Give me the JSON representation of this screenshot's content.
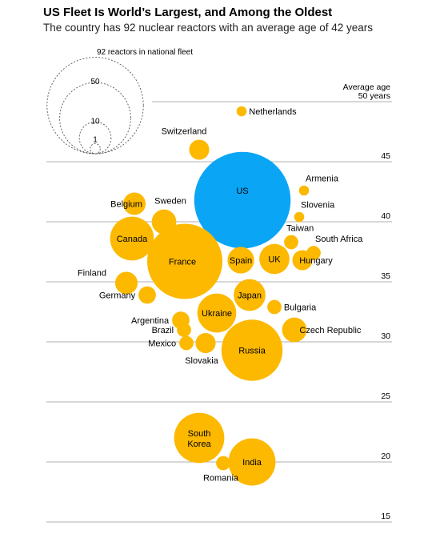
{
  "header": {
    "title": "US Fleet Is World’s Largest, and Among the Oldest",
    "subtitle": "The country has 92 nuclear reactors with an average age of 42 years"
  },
  "colors": {
    "us": "#0aa5f5",
    "other": "#fcb900",
    "grid": "#b0b0b0",
    "text": "#000000",
    "size_legend": "#555555"
  },
  "chart_data": {
    "type": "bubble",
    "title": "US Fleet Is World’s Largest, and Among the Oldest",
    "subtitle": "The country has 92 nuclear reactors with an average age of 42 years",
    "ylabel": "Average age",
    "y_axis_label_line1": "Average age",
    "y_axis_label_line2": "50 years",
    "ylim": [
      15,
      50
    ],
    "yticks": [
      50,
      45,
      40,
      35,
      30,
      25,
      20,
      15
    ],
    "ytick_labels": [
      "50 years",
      "45",
      "40",
      "35",
      "30",
      "25",
      "20",
      "15"
    ],
    "size_legend": {
      "title": "92 reactors in national fleet",
      "values": [
        92,
        50,
        10,
        1
      ],
      "labels": [
        "92",
        "50",
        "10",
        "1"
      ]
    },
    "countries": [
      {
        "name": "Netherlands",
        "avg_age": 49.2,
        "reactors": 1
      },
      {
        "name": "Switzerland",
        "avg_age": 46.0,
        "reactors": 4
      },
      {
        "name": "US",
        "avg_age": 41.8,
        "reactors": 92
      },
      {
        "name": "Armenia",
        "avg_age": 42.6,
        "reactors": 1
      },
      {
        "name": "Slovenia",
        "avg_age": 40.4,
        "reactors": 1
      },
      {
        "name": "Belgium",
        "avg_age": 41.5,
        "reactors": 5
      },
      {
        "name": "Sweden",
        "avg_age": 40.0,
        "reactors": 6
      },
      {
        "name": "Canada",
        "avg_age": 38.6,
        "reactors": 19
      },
      {
        "name": "Taiwan",
        "avg_age": 38.3,
        "reactors": 2
      },
      {
        "name": "South Africa",
        "avg_age": 37.4,
        "reactors": 2
      },
      {
        "name": "France",
        "avg_age": 36.7,
        "reactors": 56
      },
      {
        "name": "Spain",
        "avg_age": 36.8,
        "reactors": 7
      },
      {
        "name": "UK",
        "avg_age": 36.9,
        "reactors": 9
      },
      {
        "name": "Hungary",
        "avg_age": 36.8,
        "reactors": 4
      },
      {
        "name": "Finland",
        "avg_age": 34.9,
        "reactors": 5
      },
      {
        "name": "Germany",
        "avg_age": 33.9,
        "reactors": 3
      },
      {
        "name": "Japan",
        "avg_age": 33.9,
        "reactors": 10
      },
      {
        "name": "Bulgaria",
        "avg_age": 32.9,
        "reactors": 2
      },
      {
        "name": "Ukraine",
        "avg_age": 32.4,
        "reactors": 15
      },
      {
        "name": "Argentina",
        "avg_age": 31.8,
        "reactors": 3
      },
      {
        "name": "Czech Republic",
        "avg_age": 31.0,
        "reactors": 6
      },
      {
        "name": "Brazil",
        "avg_age": 31.0,
        "reactors": 2
      },
      {
        "name": "Mexico",
        "avg_age": 29.9,
        "reactors": 2
      },
      {
        "name": "Slovakia",
        "avg_age": 29.9,
        "reactors": 4
      },
      {
        "name": "Russia",
        "avg_age": 29.3,
        "reactors": 37
      },
      {
        "name": "South Korea",
        "avg_age": 22.0,
        "reactors": 25
      },
      {
        "name": "India",
        "avg_age": 20.0,
        "reactors": 22
      },
      {
        "name": "Romania",
        "avg_age": 19.9,
        "reactors": 2
      }
    ]
  }
}
